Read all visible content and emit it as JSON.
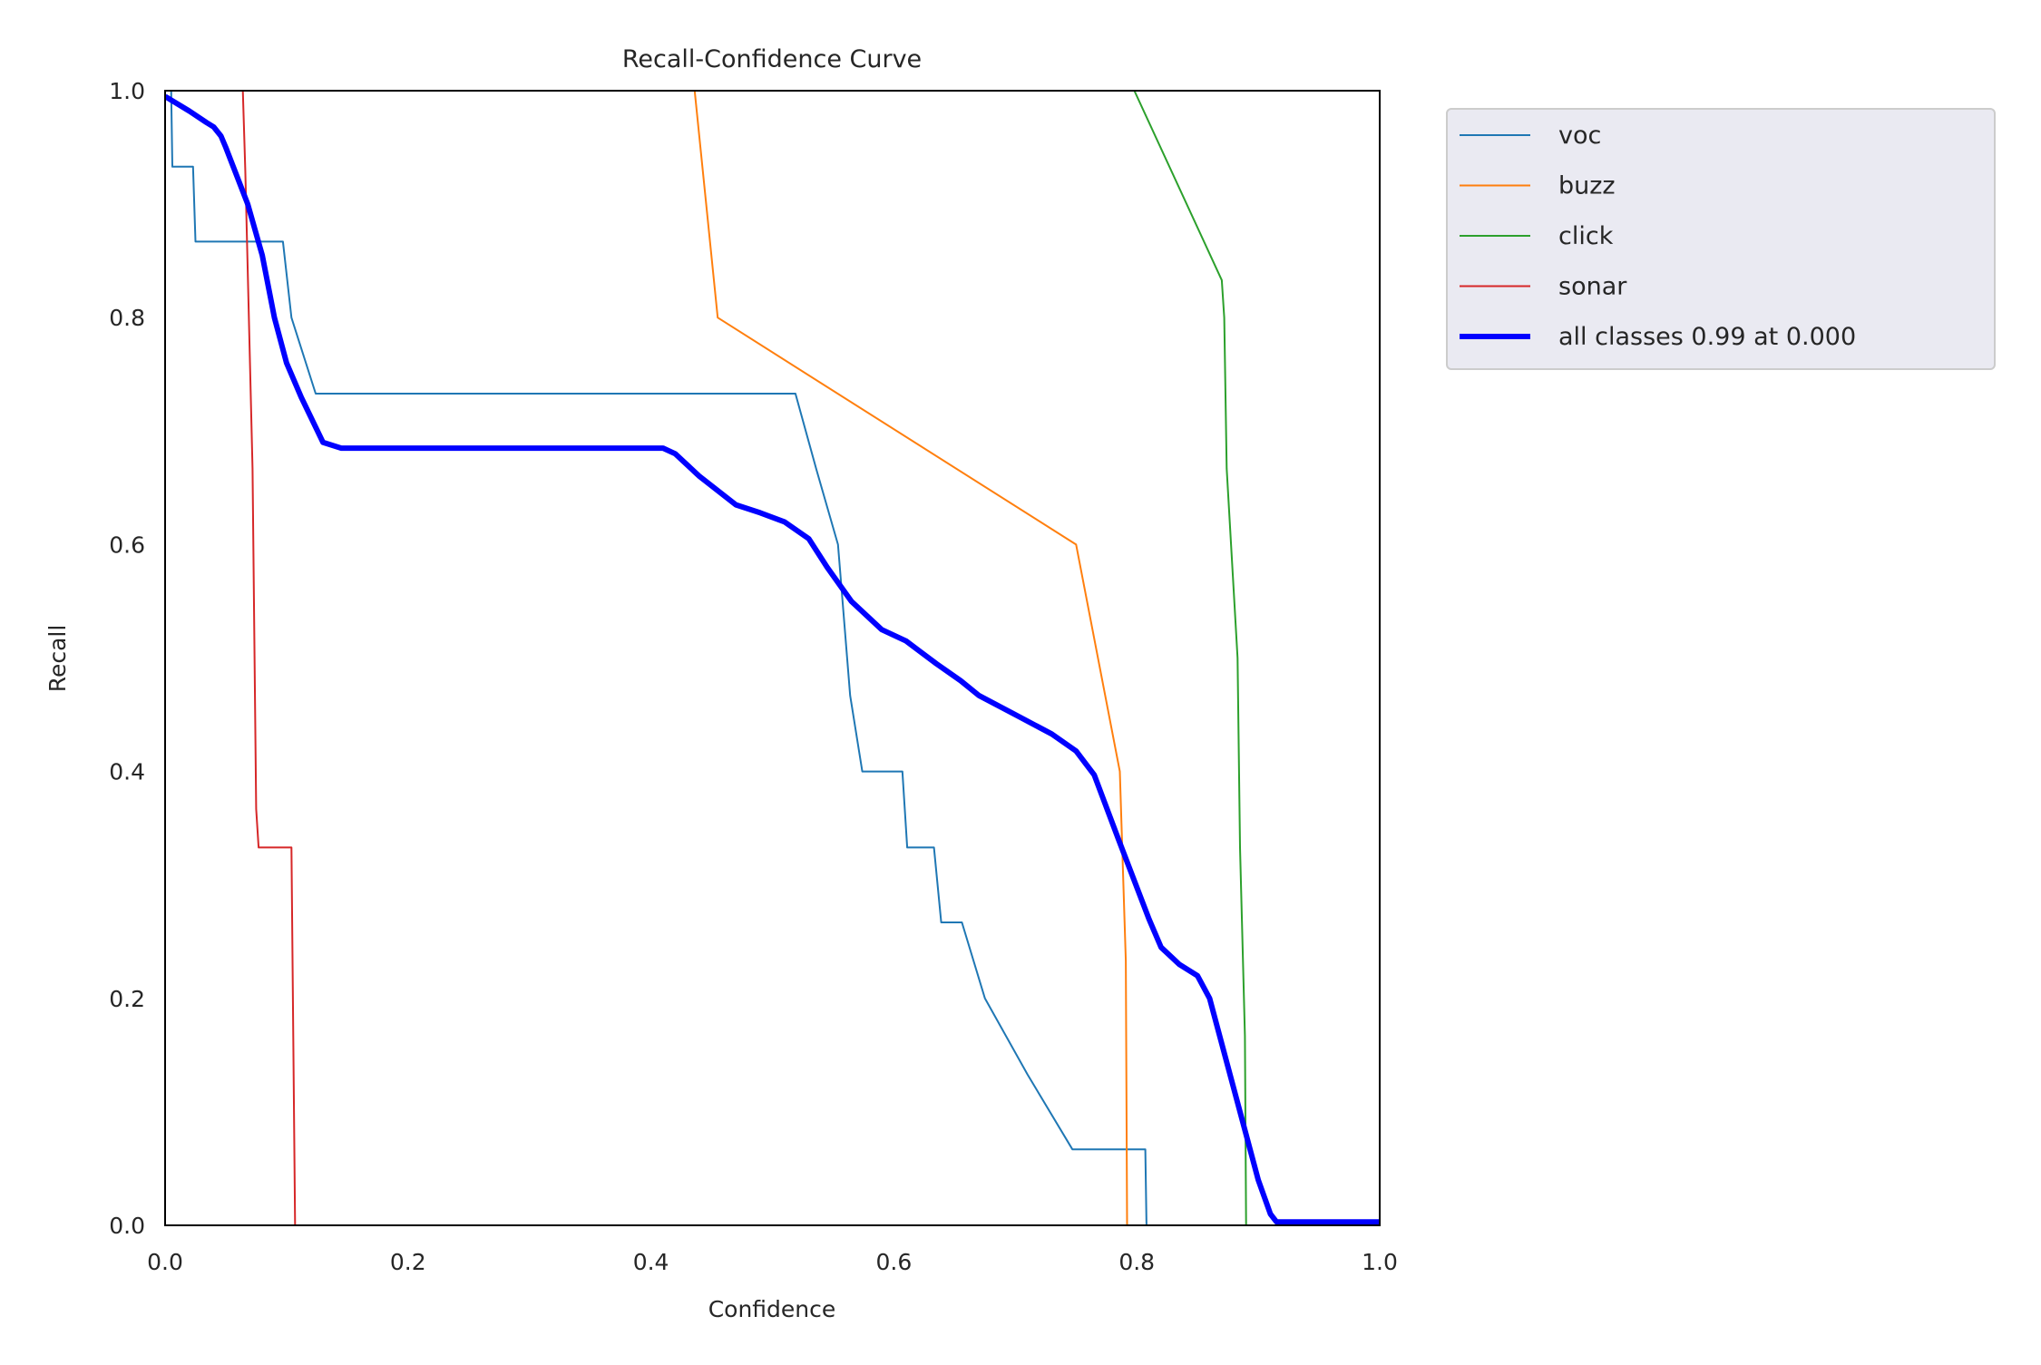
{
  "chart_data": {
    "type": "line",
    "title": "Recall-Confidence Curve",
    "xlabel": "Confidence",
    "ylabel": "Recall",
    "xlim": [
      0,
      1
    ],
    "ylim": [
      0,
      1
    ],
    "xticks": [
      "0.0",
      "0.2",
      "0.4",
      "0.6",
      "0.8",
      "1.0"
    ],
    "yticks": [
      "0.0",
      "0.2",
      "0.4",
      "0.6",
      "0.8",
      "1.0"
    ],
    "grid": false,
    "legend_position": "outside-top-right",
    "series": [
      {
        "name": "voc",
        "color": "#1f77b4",
        "width": 2,
        "points": [
          [
            0,
            1.0
          ],
          [
            0.005,
            1.0
          ],
          [
            0.006,
            0.933
          ],
          [
            0.023,
            0.933
          ],
          [
            0.025,
            0.867
          ],
          [
            0.097,
            0.867
          ],
          [
            0.104,
            0.8
          ],
          [
            0.124,
            0.733
          ],
          [
            0.519,
            0.733
          ],
          [
            0.536,
            0.667
          ],
          [
            0.554,
            0.6
          ],
          [
            0.564,
            0.467
          ],
          [
            0.574,
            0.4
          ],
          [
            0.607,
            0.4
          ],
          [
            0.611,
            0.333
          ],
          [
            0.633,
            0.333
          ],
          [
            0.639,
            0.267
          ],
          [
            0.656,
            0.267
          ],
          [
            0.675,
            0.2
          ],
          [
            0.71,
            0.133
          ],
          [
            0.747,
            0.067
          ],
          [
            0.807,
            0.067
          ],
          [
            0.808,
            0.0
          ],
          [
            1.0,
            0.0
          ]
        ]
      },
      {
        "name": "buzz",
        "color": "#ff7f0e",
        "width": 2,
        "points": [
          [
            0.436,
            1.0
          ],
          [
            0.455,
            0.8
          ],
          [
            0.75,
            0.6
          ],
          [
            0.786,
            0.4
          ],
          [
            0.791,
            0.233
          ],
          [
            0.792,
            0.0
          ],
          [
            1.0,
            0.0
          ]
        ]
      },
      {
        "name": "click",
        "color": "#2ca02c",
        "width": 2,
        "points": [
          [
            0.798,
            1.0
          ],
          [
            0.87,
            0.833
          ],
          [
            0.872,
            0.8
          ],
          [
            0.874,
            0.667
          ],
          [
            0.883,
            0.5
          ],
          [
            0.885,
            0.333
          ],
          [
            0.889,
            0.167
          ],
          [
            0.89,
            0.0
          ],
          [
            1.0,
            0.0
          ]
        ]
      },
      {
        "name": "sonar",
        "color": "#d62728",
        "width": 2,
        "points": [
          [
            0.0,
            0.0
          ],
          [
            0.064,
            1.0
          ],
          [
            0.066,
            0.93
          ],
          [
            0.072,
            0.667
          ],
          [
            0.075,
            0.367
          ],
          [
            0.077,
            0.333
          ],
          [
            0.104,
            0.333
          ],
          [
            0.107,
            0.0
          ],
          [
            1.0,
            0.0
          ]
        ],
        "note_start": 1
      },
      {
        "name": "all classes 0.99 at 0.000",
        "color": "#0000ff",
        "width": 6,
        "points": [
          [
            0,
            0.995
          ],
          [
            0.02,
            0.982
          ],
          [
            0.034,
            0.972
          ],
          [
            0.04,
            0.968
          ],
          [
            0.046,
            0.96
          ],
          [
            0.05,
            0.95
          ],
          [
            0.068,
            0.9
          ],
          [
            0.08,
            0.855
          ],
          [
            0.09,
            0.8
          ],
          [
            0.1,
            0.76
          ],
          [
            0.112,
            0.73
          ],
          [
            0.13,
            0.69
          ],
          [
            0.145,
            0.685
          ],
          [
            0.41,
            0.685
          ],
          [
            0.42,
            0.68
          ],
          [
            0.44,
            0.66
          ],
          [
            0.47,
            0.635
          ],
          [
            0.49,
            0.628
          ],
          [
            0.51,
            0.62
          ],
          [
            0.53,
            0.605
          ],
          [
            0.545,
            0.58
          ],
          [
            0.565,
            0.55
          ],
          [
            0.59,
            0.525
          ],
          [
            0.61,
            0.515
          ],
          [
            0.635,
            0.495
          ],
          [
            0.655,
            0.48
          ],
          [
            0.67,
            0.467
          ],
          [
            0.7,
            0.45
          ],
          [
            0.73,
            0.433
          ],
          [
            0.75,
            0.418
          ],
          [
            0.765,
            0.397
          ],
          [
            0.785,
            0.34
          ],
          [
            0.81,
            0.27
          ],
          [
            0.82,
            0.245
          ],
          [
            0.835,
            0.23
          ],
          [
            0.85,
            0.22
          ],
          [
            0.86,
            0.2
          ],
          [
            0.875,
            0.14
          ],
          [
            0.89,
            0.08
          ],
          [
            0.9,
            0.04
          ],
          [
            0.91,
            0.01
          ],
          [
            0.915,
            0.003
          ],
          [
            1.0,
            0.003
          ]
        ]
      }
    ]
  }
}
